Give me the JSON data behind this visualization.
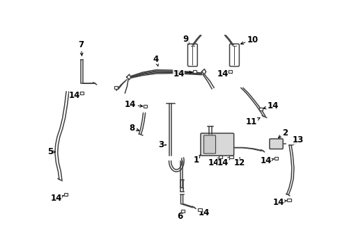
{
  "background_color": "#ffffff",
  "line_color": "#404040",
  "text_color": "#000000",
  "font_size": 8.5,
  "fig_width": 4.89,
  "fig_height": 3.6,
  "dpi": 100
}
